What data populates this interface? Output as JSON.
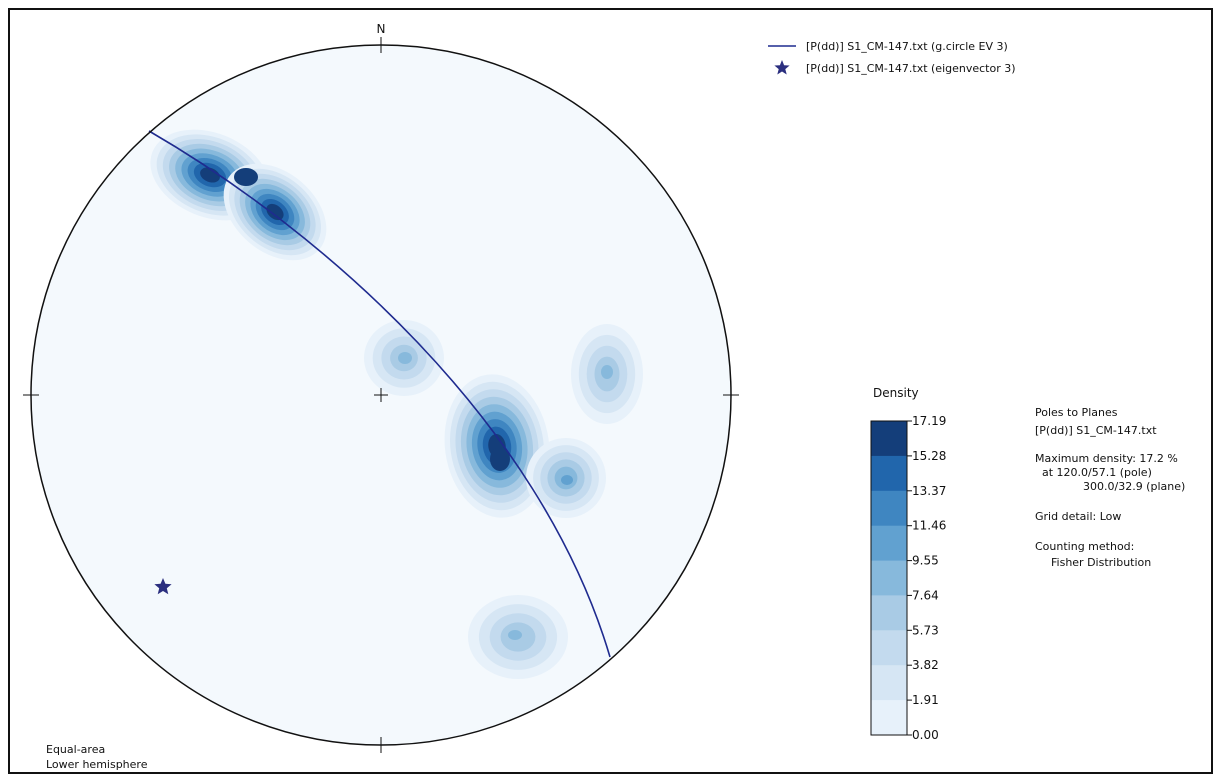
{
  "chart_data": {
    "type": "stereonet-density",
    "projection": "Equal-area",
    "hemisphere": "Lower hemisphere",
    "north_label": "N",
    "colormap": [
      "#f4f9fd",
      "#e7f1fa",
      "#d6e6f4",
      "#c3daee",
      "#a9cbe5",
      "#87b9dc",
      "#61a1d0",
      "#3f86c1",
      "#2166ac",
      "#143e7a"
    ],
    "colorbar": {
      "title": "Density",
      "ticks": [
        "17.19",
        "15.28",
        "13.37",
        "11.46",
        "9.55",
        "7.64",
        "5.73",
        "3.82",
        "1.91",
        "0.00"
      ],
      "max": 17.19,
      "min": 0.0
    },
    "great_circle": {
      "label": "[P(dd)] S1_CM-147.txt (g.circle EV 3)",
      "color": "#1f2b8f",
      "plane": "300.0/32.9"
    },
    "eigenvector": {
      "label": "[P(dd)] S1_CM-147.txt (eigenvector 3)",
      "color": "#2b2f7f"
    },
    "density_clusters": [
      {
        "name": "cluster-nw",
        "peak": 17.2
      },
      {
        "name": "cluster-center-left",
        "peak": 7.6
      },
      {
        "name": "cluster-east",
        "peak": 7.6
      },
      {
        "name": "cluster-main",
        "peak": 17.19
      },
      {
        "name": "cluster-southeast",
        "peak": 9.5
      },
      {
        "name": "cluster-south",
        "peak": 7.6
      }
    ],
    "info": {
      "title": "Poles to Planes",
      "file": "[P(dd)] S1_CM-147.txt",
      "max_density_line1": "Maximum density: 17.2 %",
      "max_density_line2": "at 120.0/57.1 (pole)",
      "max_density_line3": "300.0/32.9 (plane)",
      "grid_detail": "Grid detail: Low",
      "counting_label": "Counting method:",
      "counting_value": "Fisher Distribution"
    }
  }
}
